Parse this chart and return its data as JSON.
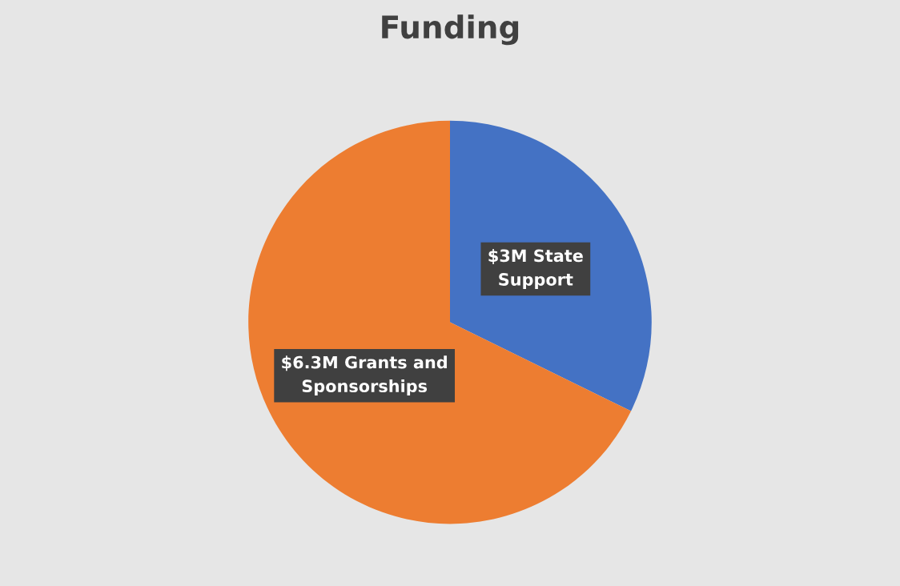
{
  "chart_data": {
    "type": "pie",
    "title": "Funding",
    "categories": [
      "$3M State\nSupport",
      "$6.3M Grants and\nSponsorships"
    ],
    "values": [
      3,
      6.3
    ],
    "colors": [
      "#4472c4",
      "#ed7d31"
    ],
    "legend": false
  }
}
